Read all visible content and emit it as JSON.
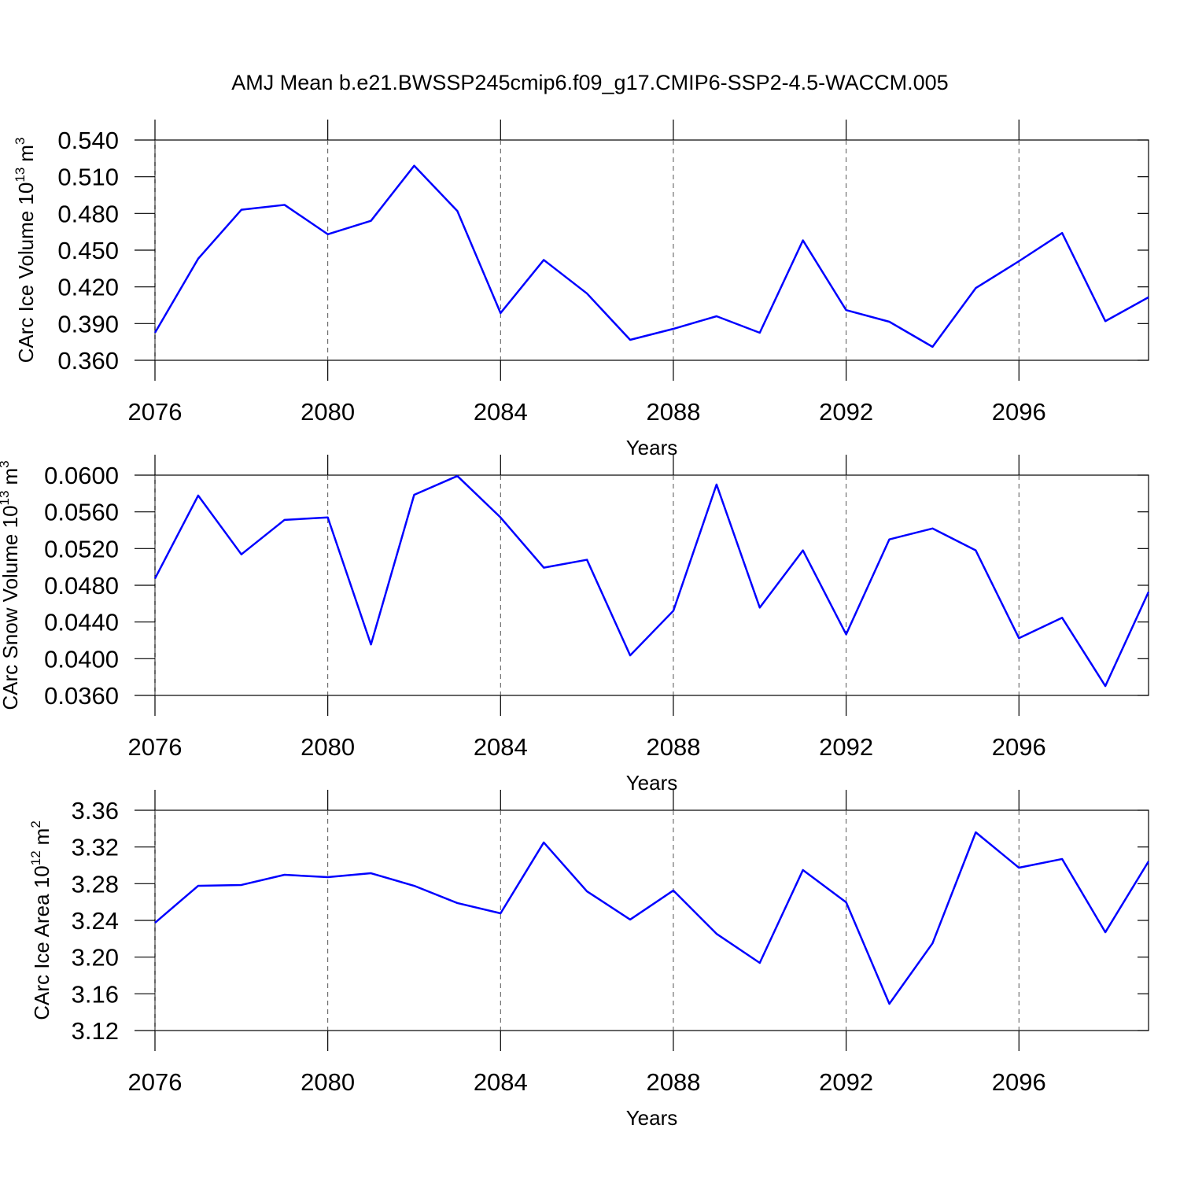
{
  "chart_data": [
    {
      "type": "line",
      "title": "AMJ Mean b.e21.BWSSP245cmip6.f09_g17.CMIP6-SSP2-4.5-WACCM.005",
      "xlabel": "Years",
      "ylabel": {
        "base": "CArc Ice Volume 10",
        "exponent": "13",
        "unit": "m",
        "unit_exponent": "3"
      },
      "x": [
        2076,
        2077,
        2078,
        2079,
        2080,
        2081,
        2082,
        2083,
        2084,
        2085,
        2086,
        2087,
        2088,
        2089,
        2090,
        2091,
        2092,
        2093,
        2094,
        2095,
        2096,
        2097,
        2098,
        2099
      ],
      "series": [
        {
          "color": "#0000ff",
          "values": [
            0.3825,
            0.443,
            0.483,
            0.487,
            0.463,
            0.474,
            0.519,
            0.482,
            0.3986,
            0.442,
            0.4146,
            0.3767,
            0.3857,
            0.396,
            0.3825,
            0.458,
            0.401,
            0.3915,
            0.371,
            0.419,
            0.441,
            0.464,
            0.392,
            0.4115
          ]
        }
      ],
      "xlim": [
        2076,
        2099
      ],
      "xticks": [
        2076,
        2080,
        2084,
        2088,
        2092,
        2096
      ],
      "ylim": [
        0.36,
        0.54
      ],
      "yticks": [
        {
          "value": 0.36,
          "label": "0.360"
        },
        {
          "value": 0.39,
          "label": "0.390"
        },
        {
          "value": 0.42,
          "label": "0.420"
        },
        {
          "value": 0.45,
          "label": "0.450"
        },
        {
          "value": 0.48,
          "label": "0.480"
        },
        {
          "value": 0.51,
          "label": "0.510"
        },
        {
          "value": 0.54,
          "label": "0.540"
        }
      ],
      "grid": "x"
    },
    {
      "type": "line",
      "xlabel": "Years",
      "ylabel": {
        "base": "CArc Snow Volume 10",
        "exponent": "13",
        "unit": "m",
        "unit_exponent": "3"
      },
      "x": [
        2076,
        2077,
        2078,
        2079,
        2080,
        2081,
        2082,
        2083,
        2084,
        2085,
        2086,
        2087,
        2088,
        2089,
        2090,
        2091,
        2092,
        2093,
        2094,
        2095,
        2096,
        2097,
        2098,
        2099
      ],
      "series": [
        {
          "color": "#0000ff",
          "values": [
            0.04873,
            0.05778,
            0.05137,
            0.05513,
            0.05539,
            0.04155,
            0.05786,
            0.05991,
            0.05539,
            0.04992,
            0.05078,
            0.04036,
            0.04522,
            0.05898,
            0.04557,
            0.0518,
            0.04266,
            0.053,
            0.05419,
            0.0518,
            0.04224,
            0.04446,
            0.03702,
            0.04727
          ]
        }
      ],
      "xlim": [
        2076,
        2099
      ],
      "xticks": [
        2076,
        2080,
        2084,
        2088,
        2092,
        2096
      ],
      "ylim": [
        0.036,
        0.06
      ],
      "yticks": [
        {
          "value": 0.036,
          "label": "0.0360"
        },
        {
          "value": 0.04,
          "label": "0.0400"
        },
        {
          "value": 0.044,
          "label": "0.0440"
        },
        {
          "value": 0.048,
          "label": "0.0480"
        },
        {
          "value": 0.052,
          "label": "0.0520"
        },
        {
          "value": 0.056,
          "label": "0.0560"
        },
        {
          "value": 0.06,
          "label": "0.0600"
        }
      ],
      "grid": "x"
    },
    {
      "type": "line",
      "xlabel": "Years",
      "ylabel": {
        "base": "CArc Ice Area 10",
        "exponent": "12",
        "unit": "m",
        "unit_exponent": "2"
      },
      "x": [
        2076,
        2077,
        2078,
        2079,
        2080,
        2081,
        2082,
        2083,
        2084,
        2085,
        2086,
        2087,
        2088,
        2089,
        2090,
        2091,
        2092,
        2093,
        2094,
        2095,
        2096,
        2097,
        2098,
        2099
      ],
      "series": [
        {
          "color": "#0000ff",
          "values": [
            3.2374,
            3.2777,
            3.2786,
            3.2897,
            3.2871,
            3.2914,
            3.2777,
            3.2589,
            3.2477,
            3.3249,
            3.2717,
            3.2409,
            3.2726,
            3.2254,
            3.1937,
            3.2949,
            3.2597,
            3.1491,
            3.2151,
            3.336,
            3.2974,
            3.3069,
            3.2271,
            3.3043
          ]
        }
      ],
      "xlim": [
        2076,
        2099
      ],
      "xticks": [
        2076,
        2080,
        2084,
        2088,
        2092,
        2096
      ],
      "ylim": [
        3.12,
        3.36
      ],
      "yticks": [
        3.12,
        3.16,
        {
          "value": 3.2,
          "label": "3.20"
        },
        3.24,
        3.28,
        3.32,
        3.36
      ],
      "grid": "x"
    }
  ]
}
